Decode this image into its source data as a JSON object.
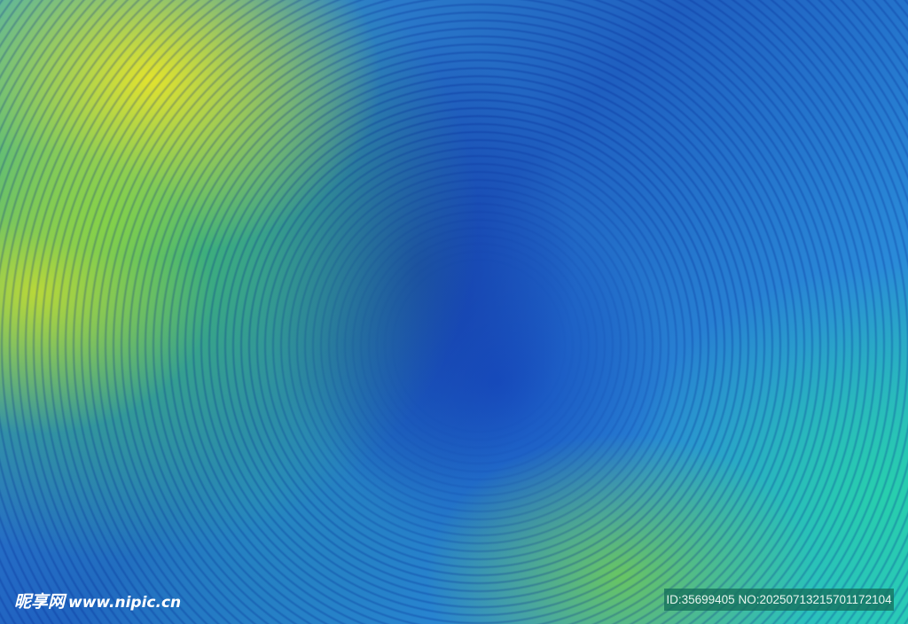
{
  "watermark": {
    "brand": "昵享网",
    "url": "www.nipic.cn",
    "id_text": "ID:35699405 NO:20250713215701172104"
  },
  "colors": {
    "yellow": "#e8e428",
    "green": "#46c85a",
    "blue": "#1f5fc0",
    "teal": "#2bc7c0"
  }
}
